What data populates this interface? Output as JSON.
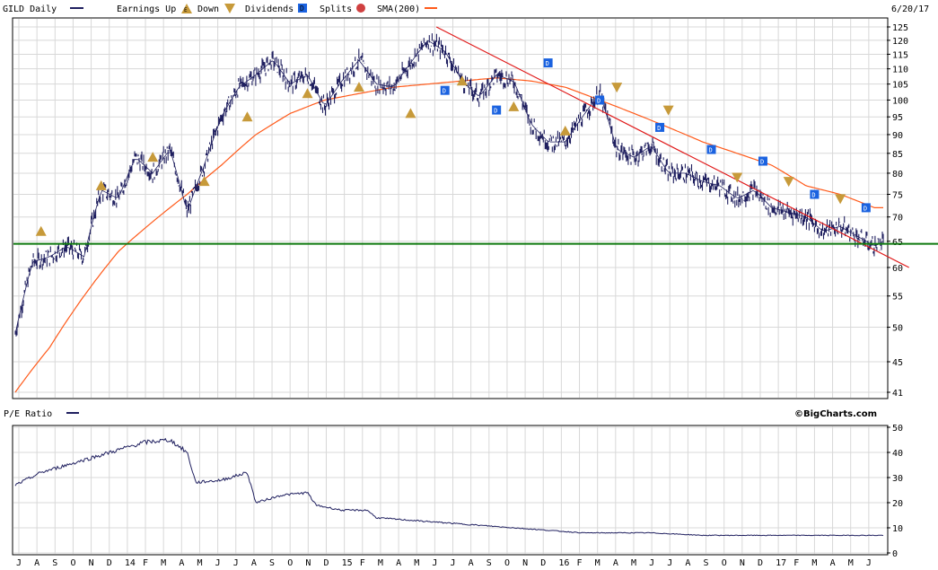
{
  "header": {
    "ticker_label": "GILD Daily",
    "earnings_label": "Earnings Up",
    "down_label": "Down",
    "dividends_label": "Dividends",
    "splits_label": "Splits",
    "sma_label": "SMA(200)",
    "date": "6/20/17",
    "colors": {
      "price": "#1f1f5f",
      "sma": "#ff5a1a",
      "trend": "#e01818",
      "support": "#107a10",
      "dividend": "#1a62e0",
      "earnings": "#c79a3a",
      "split": "#d04040"
    }
  },
  "lower_header": {
    "pe_label": "P/E Ratio",
    "credit": "©BigCharts.com"
  },
  "chart_data": [
    {
      "type": "line",
      "title": "GILD Daily",
      "y_scale": "log",
      "ylim": [
        41,
        125
      ],
      "y_ticks": [
        41,
        45,
        50,
        55,
        60,
        65,
        70,
        75,
        80,
        85,
        90,
        95,
        100,
        105,
        110,
        115,
        120,
        125
      ],
      "x_ticks": [
        "J",
        "A",
        "S",
        "O",
        "N",
        "D",
        "14",
        "F",
        "M",
        "A",
        "M",
        "J",
        "J",
        "A",
        "S",
        "O",
        "N",
        "D",
        "15",
        "F",
        "M",
        "A",
        "M",
        "J",
        "J",
        "A",
        "S",
        "O",
        "N",
        "D",
        "16",
        "F",
        "M",
        "A",
        "M",
        "J",
        "J",
        "A",
        "S",
        "O",
        "N",
        "D",
        "17",
        "F",
        "M",
        "A",
        "M",
        "J"
      ],
      "series": [
        {
          "name": "GILD Daily",
          "points": [
            [
              0,
              49
            ],
            [
              2,
              61
            ],
            [
              4,
              62
            ],
            [
              6,
              64
            ],
            [
              8,
              62
            ],
            [
              10,
              76
            ],
            [
              12,
              74
            ],
            [
              14,
              84
            ],
            [
              16,
              80
            ],
            [
              18,
              86
            ],
            [
              20,
              71
            ],
            [
              22,
              82
            ],
            [
              24,
              95
            ],
            [
              26,
              104
            ],
            [
              28,
              108
            ],
            [
              30,
              113
            ],
            [
              32,
              105
            ],
            [
              34,
              108
            ],
            [
              36,
              98
            ],
            [
              38,
              106
            ],
            [
              40,
              113
            ],
            [
              42,
              105
            ],
            [
              44,
              104
            ],
            [
              46,
              112
            ],
            [
              48,
              120
            ],
            [
              50,
              116
            ],
            [
              52,
              106
            ],
            [
              54,
              101
            ],
            [
              56,
              108
            ],
            [
              58,
              106
            ],
            [
              60,
              93
            ],
            [
              62,
              88
            ],
            [
              64,
              88
            ],
            [
              66,
              95
            ],
            [
              68,
              102
            ],
            [
              70,
              86
            ],
            [
              72,
              84
            ],
            [
              74,
              87
            ],
            [
              76,
              80
            ],
            [
              78,
              80
            ],
            [
              80,
              78
            ],
            [
              82,
              77
            ],
            [
              84,
              74
            ],
            [
              86,
              76
            ],
            [
              88,
              72
            ],
            [
              90,
              71
            ],
            [
              92,
              70
            ],
            [
              94,
              67
            ],
            [
              96,
              68
            ],
            [
              98,
              66
            ],
            [
              100,
              64
            ],
            [
              101,
              65
            ]
          ]
        },
        {
          "name": "SMA(200)",
          "points": [
            [
              0,
              41
            ],
            [
              4,
              47
            ],
            [
              8,
              55
            ],
            [
              12,
              63
            ],
            [
              16,
              69
            ],
            [
              20,
              75
            ],
            [
              24,
              82
            ],
            [
              28,
              90
            ],
            [
              32,
              96
            ],
            [
              36,
              100
            ],
            [
              40,
              102
            ],
            [
              44,
              104
            ],
            [
              48,
              105
            ],
            [
              52,
              106
            ],
            [
              56,
              107
            ],
            [
              60,
              106
            ],
            [
              64,
              104
            ],
            [
              68,
              100
            ],
            [
              72,
              96
            ],
            [
              76,
              92
            ],
            [
              80,
              88
            ],
            [
              84,
              85
            ],
            [
              88,
              82
            ],
            [
              92,
              77
            ],
            [
              96,
              75
            ],
            [
              100,
              72
            ],
            [
              101,
              72
            ]
          ]
        }
      ],
      "annotations": {
        "dividends": [
          [
            50,
            103
          ],
          [
            56,
            97
          ],
          [
            62,
            112
          ],
          [
            68,
            100
          ],
          [
            75,
            92
          ],
          [
            81,
            86
          ],
          [
            87,
            83
          ],
          [
            93,
            75
          ],
          [
            99,
            72
          ]
        ],
        "earnings_up": [
          [
            3,
            67
          ],
          [
            10,
            77
          ],
          [
            16,
            84
          ],
          [
            22,
            78
          ],
          [
            27,
            95
          ],
          [
            34,
            102
          ],
          [
            40,
            104
          ],
          [
            46,
            96
          ],
          [
            52,
            106
          ],
          [
            58,
            98
          ],
          [
            64,
            91
          ]
        ],
        "earnings_down": [
          [
            70,
            104
          ],
          [
            76,
            97
          ],
          [
            84,
            79
          ],
          [
            90,
            78
          ],
          [
            96,
            74
          ]
        ]
      },
      "trend_line": [
        [
          49,
          125
        ],
        [
          104,
          60
        ]
      ],
      "support_level": 64.5
    },
    {
      "type": "line",
      "title": "P/E Ratio",
      "ylim": [
        0,
        50
      ],
      "y_ticks": [
        0,
        10,
        20,
        30,
        40,
        50
      ],
      "x_ticks": [
        "J",
        "A",
        "S",
        "O",
        "N",
        "D",
        "14",
        "F",
        "M",
        "A",
        "M",
        "J",
        "J",
        "A",
        "S",
        "O",
        "N",
        "D",
        "15",
        "F",
        "M",
        "A",
        "M",
        "J",
        "J",
        "A",
        "S",
        "O",
        "N",
        "D",
        "16",
        "F",
        "M",
        "A",
        "M",
        "J",
        "J",
        "A",
        "S",
        "O",
        "N",
        "D",
        "17",
        "F",
        "M",
        "A",
        "M",
        "J"
      ],
      "series": [
        {
          "name": "P/E Ratio",
          "points": [
            [
              0,
              27
            ],
            [
              3,
              32
            ],
            [
              6,
              35
            ],
            [
              9,
              38
            ],
            [
              12,
              41
            ],
            [
              15,
              44
            ],
            [
              18,
              45
            ],
            [
              20,
              40
            ],
            [
              21,
              28
            ],
            [
              24,
              29
            ],
            [
              27,
              32
            ],
            [
              28,
              20
            ],
            [
              31,
              23
            ],
            [
              34,
              24
            ],
            [
              35,
              19
            ],
            [
              38,
              17
            ],
            [
              41,
              17
            ],
            [
              42,
              14
            ],
            [
              46,
              13
            ],
            [
              50,
              12
            ],
            [
              54,
              11
            ],
            [
              58,
              10
            ],
            [
              62,
              9
            ],
            [
              66,
              8
            ],
            [
              70,
              8
            ],
            [
              74,
              8
            ],
            [
              80,
              7
            ],
            [
              86,
              7
            ],
            [
              92,
              7
            ],
            [
              98,
              7
            ],
            [
              101,
              7
            ]
          ]
        }
      ]
    }
  ]
}
